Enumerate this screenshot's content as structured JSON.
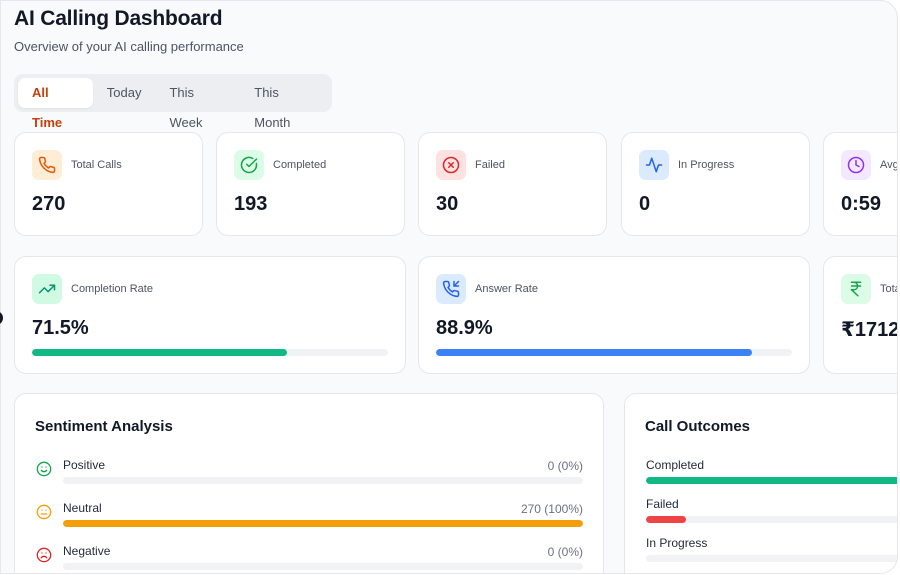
{
  "header": {
    "title": "AI Calling Dashboard",
    "subtitle": "Overview of your AI calling performance"
  },
  "tabs": [
    {
      "label": "All Time",
      "active": true
    },
    {
      "label": "Today",
      "active": false
    },
    {
      "label": "This Week",
      "active": false
    },
    {
      "label": "This Month",
      "active": false
    }
  ],
  "stats": [
    {
      "label": "Total Calls",
      "value": "270",
      "icon": "phone-icon",
      "color": "#ea580c",
      "bg": "#ffedd5"
    },
    {
      "label": "Completed",
      "value": "193",
      "icon": "check-circle-icon",
      "color": "#16a34a",
      "bg": "#dcfce7"
    },
    {
      "label": "Failed",
      "value": "30",
      "icon": "x-circle-icon",
      "color": "#dc2626",
      "bg": "#fee2e2"
    },
    {
      "label": "In Progress",
      "value": "0",
      "icon": "activity-icon",
      "color": "#2563eb",
      "bg": "#dbeafe"
    },
    {
      "label": "Avg",
      "value": "0:59",
      "icon": "clock-icon",
      "color": "#9333ea",
      "bg": "#f3e8ff"
    }
  ],
  "rates": [
    {
      "label": "Completion Rate",
      "value": "71.5%",
      "percent": 71.5,
      "icon": "trending-up-icon",
      "color": "#10b981",
      "bg": "#d1fae5"
    },
    {
      "label": "Answer Rate",
      "value": "88.9%",
      "percent": 88.9,
      "icon": "phone-incoming-icon",
      "color": "#3b82f6",
      "bg": "#dbeafe"
    },
    {
      "label": "Tota",
      "value": "₹1712",
      "icon": "rupee-icon",
      "color": "#16a34a",
      "bg": "#dcfce7"
    }
  ],
  "sentiment": {
    "title": "Sentiment Analysis",
    "rows": [
      {
        "label": "Positive",
        "value": "0 (0%)",
        "percent": 0,
        "icon": "smile-icon",
        "color": "#16a34a"
      },
      {
        "label": "Neutral",
        "value": "270 (100%)",
        "percent": 100,
        "icon": "meh-icon",
        "color": "#f59e0b"
      },
      {
        "label": "Negative",
        "value": "0 (0%)",
        "percent": 0,
        "icon": "frown-icon",
        "color": "#dc2626"
      }
    ]
  },
  "outcomes": {
    "title": "Call Outcomes",
    "rows": [
      {
        "label": "Completed",
        "percent": 71.5,
        "color": "#10b981"
      },
      {
        "label": "Failed",
        "percent": 11.1,
        "color": "#ef4444"
      },
      {
        "label": "In Progress",
        "percent": 0,
        "color": "#3b82f6"
      }
    ]
  }
}
